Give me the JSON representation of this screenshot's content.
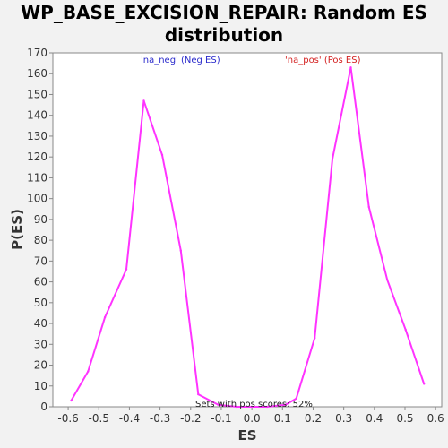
{
  "chart_data": {
    "type": "line",
    "title": "WP_BASE_EXCISION_REPAIR: Random ES\ndistribution",
    "xlabel": "ES",
    "ylabel": "P(ES)",
    "xlim": [
      -0.65,
      0.62
    ],
    "ylim": [
      0,
      170
    ],
    "x_ticks": [
      -0.6,
      -0.5,
      -0.4,
      -0.3,
      -0.2,
      -0.1,
      0.0,
      0.1,
      0.2,
      0.3,
      0.4,
      0.5,
      0.6
    ],
    "x_tick_labels": [
      "-0.6",
      "-0.5",
      "-0.4",
      "-0.3",
      "-0.2",
      "-0.1",
      "0.0",
      "0.1",
      "0.2",
      "0.3",
      "0.4",
      "0.5",
      "0.6"
    ],
    "y_ticks": [
      0,
      10,
      20,
      30,
      40,
      50,
      60,
      70,
      80,
      90,
      100,
      110,
      120,
      130,
      140,
      150,
      160,
      170
    ],
    "series": [
      {
        "color": "#ff33ff",
        "x": [
          -0.59,
          -0.535,
          -0.48,
          -0.41,
          -0.353,
          -0.293,
          -0.232,
          -0.175,
          -0.11,
          -0.05,
          0.0,
          0.05,
          0.11,
          0.145,
          0.205,
          0.263,
          0.323,
          0.382,
          0.442,
          0.502,
          0.562
        ],
        "y": [
          3,
          17,
          43,
          66,
          147,
          121,
          75,
          6,
          1,
          0,
          0,
          0,
          1,
          4,
          33,
          119,
          163,
          96,
          61,
          37,
          11
        ]
      }
    ],
    "annotations": [
      {
        "text": "'na_neg' (Neg ES)",
        "color": "#2a2acc"
      },
      {
        "text": "'na_pos' (Pos ES)",
        "color": "#d42020"
      },
      {
        "text": "Sets with pos scores: 52%",
        "color": "#222222"
      }
    ],
    "grid": false,
    "legend": "none"
  }
}
